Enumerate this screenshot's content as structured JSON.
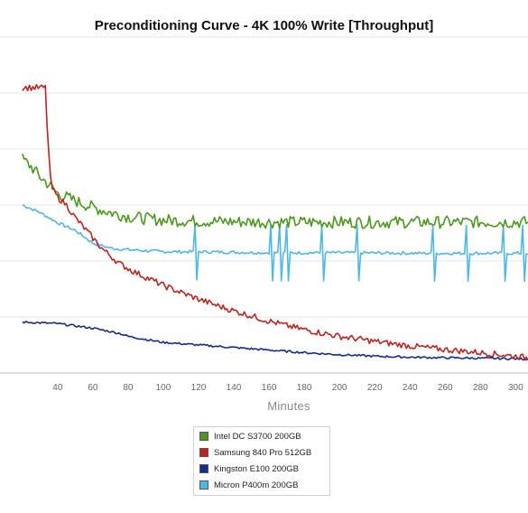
{
  "chart_data": {
    "type": "line",
    "title": "Preconditioning Curve - 4K 100% Write [Throughput]",
    "xlabel": "Minutes",
    "ylabel": "",
    "xlim": [
      20,
      307
    ],
    "ylim": [
      0,
      6.7
    ],
    "x_ticks": [
      40,
      60,
      80,
      100,
      120,
      140,
      160,
      180,
      200,
      220,
      240,
      260,
      280,
      300
    ],
    "gridlines": "horizontal",
    "legend_position": "bottom",
    "series": [
      {
        "name": "Intel DC S3700 200GB",
        "color": "#4a9a1a",
        "points": [
          [
            20,
            4.2
          ],
          [
            25,
            4.05
          ],
          [
            30,
            3.85
          ],
          [
            35,
            3.7
          ],
          [
            40,
            3.52
          ],
          [
            50,
            3.38
          ],
          [
            60,
            3.25
          ],
          [
            70,
            3.15
          ],
          [
            80,
            3.07
          ],
          [
            90,
            3.03
          ],
          [
            100,
            3.0
          ],
          [
            120,
            2.98
          ],
          [
            160,
            2.96
          ],
          [
            200,
            2.96
          ],
          [
            250,
            2.96
          ],
          [
            307,
            2.96
          ]
        ],
        "noise": 0.12,
        "spikes": []
      },
      {
        "name": "Samsung 840 Pro 512GB",
        "color": "#c0231f",
        "points": [
          [
            20,
            5.6
          ],
          [
            33,
            5.6
          ],
          [
            34,
            4.9
          ],
          [
            35,
            4.3
          ],
          [
            36,
            3.8
          ],
          [
            37,
            3.62
          ],
          [
            40,
            3.45
          ],
          [
            45,
            3.3
          ],
          [
            50,
            3.05
          ],
          [
            55,
            2.85
          ],
          [
            60,
            2.65
          ],
          [
            65,
            2.45
          ],
          [
            70,
            2.3
          ],
          [
            75,
            2.15
          ],
          [
            80,
            2.05
          ],
          [
            85,
            1.96
          ],
          [
            90,
            1.88
          ],
          [
            100,
            1.72
          ],
          [
            110,
            1.58
          ],
          [
            120,
            1.45
          ],
          [
            130,
            1.33
          ],
          [
            140,
            1.22
          ],
          [
            150,
            1.12
          ],
          [
            160,
            1.02
          ],
          [
            170,
            0.93
          ],
          [
            180,
            0.85
          ],
          [
            200,
            0.72
          ],
          [
            220,
            0.62
          ],
          [
            240,
            0.53
          ],
          [
            260,
            0.46
          ],
          [
            280,
            0.4
          ],
          [
            300,
            0.33
          ],
          [
            307,
            0.3
          ]
        ],
        "noise": 0.06,
        "spikes": []
      },
      {
        "name": "Kingston E100 200GB",
        "color": "#132e8a",
        "points": [
          [
            20,
            1.0
          ],
          [
            40,
            0.97
          ],
          [
            60,
            0.88
          ],
          [
            75,
            0.78
          ],
          [
            80,
            0.72
          ],
          [
            90,
            0.66
          ],
          [
            100,
            0.6
          ],
          [
            120,
            0.55
          ],
          [
            140,
            0.5
          ],
          [
            160,
            0.45
          ],
          [
            180,
            0.4
          ],
          [
            200,
            0.36
          ],
          [
            220,
            0.33
          ],
          [
            240,
            0.31
          ],
          [
            260,
            0.3
          ],
          [
            280,
            0.29
          ],
          [
            300,
            0.28
          ],
          [
            307,
            0.27
          ]
        ],
        "noise": 0.02,
        "spikes": []
      },
      {
        "name": "Micron P400m 200GB",
        "color": "#4db8e6",
        "points": [
          [
            20,
            3.3
          ],
          [
            30,
            3.15
          ],
          [
            40,
            2.95
          ],
          [
            50,
            2.8
          ],
          [
            60,
            2.55
          ],
          [
            70,
            2.45
          ],
          [
            80,
            2.42
          ],
          [
            100,
            2.38
          ],
          [
            120,
            2.38
          ],
          [
            160,
            2.36
          ],
          [
            200,
            2.36
          ],
          [
            250,
            2.35
          ],
          [
            307,
            2.35
          ]
        ],
        "noise": 0.03,
        "spikes": [
          118,
          119,
          161,
          162,
          166,
          167,
          170,
          171,
          190,
          191,
          210,
          211,
          253,
          254,
          272,
          273,
          293,
          294,
          304,
          305
        ]
      }
    ]
  }
}
